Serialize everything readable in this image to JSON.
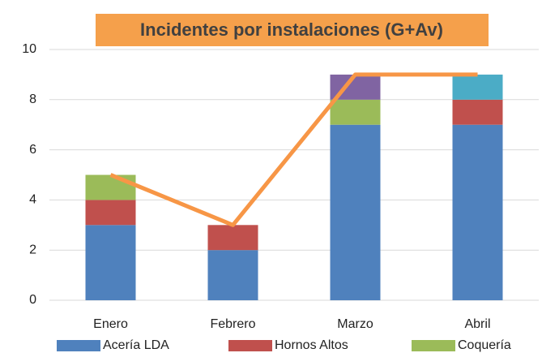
{
  "chart_data": {
    "type": "bar",
    "stacked": true,
    "title": "Incidentes por instalaciones (G+Av)",
    "title_background": "#f5a04b",
    "categories": [
      "Enero",
      "Febrero",
      "Marzo",
      "Abril"
    ],
    "series": [
      {
        "name": "Acería LDA",
        "color": "#4f81bd",
        "values": [
          3,
          2,
          7,
          7
        ]
      },
      {
        "name": "Hornos Altos",
        "color": "#c0504d",
        "values": [
          1,
          1,
          0,
          1
        ]
      },
      {
        "name": "Coquería",
        "color": "#9bbb59",
        "values": [
          1,
          0,
          1,
          0
        ]
      },
      {
        "color": "#8064a2",
        "values": [
          0,
          0,
          1,
          0
        ]
      },
      {
        "color": "#4bacc6",
        "values": [
          0,
          0,
          0,
          1
        ]
      },
      {
        "type": "line",
        "color": "#f79646",
        "values": [
          5,
          3,
          9,
          9
        ]
      }
    ],
    "ylim": [
      0,
      10
    ],
    "yticks": [
      0,
      2,
      4,
      6,
      8,
      10
    ],
    "grid": true,
    "legend": "bottom"
  }
}
